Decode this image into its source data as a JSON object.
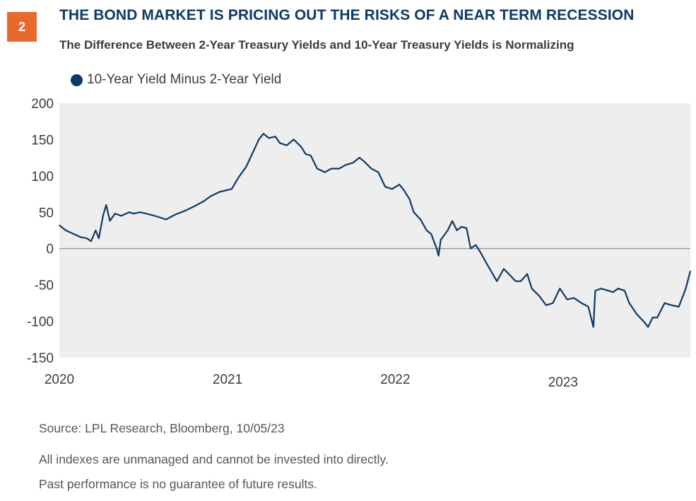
{
  "header": {
    "badge": "2",
    "title": "THE BOND MARKET IS PRICING OUT THE RISKS OF A NEAR TERM RECESSION",
    "subtitle": "The Difference Between 2-Year Treasury Yields and 10-Year Treasury Yields is Normalizing"
  },
  "colors": {
    "accent": "#e8692c",
    "title": "#0d3a66",
    "series": "#0d3a66",
    "plot_background": "#eeeeee"
  },
  "footer": {
    "source": "Source: LPL Research, Bloomberg,  10/05/23",
    "disclaimer1": "All indexes are unmanaged and cannot be invested into directly.",
    "disclaimer2": "Past performance is no guarantee of future results."
  },
  "chart_data": {
    "type": "line",
    "title": "",
    "xlabel": "",
    "ylabel": "",
    "ylim": [
      -150,
      200
    ],
    "yticks": [
      "200",
      "150",
      "100",
      "50",
      "0",
      "-50",
      "-100",
      "-150"
    ],
    "xticks": [
      "2020",
      "2021",
      "2022",
      "2023"
    ],
    "zero_line": true,
    "grid": false,
    "legend_position": "top-left",
    "series": [
      {
        "name": "10-Year Yield Minus 2-Year Yield",
        "color": "#0d3a66",
        "points": [
          [
            "2020-01-01",
            32
          ],
          [
            "2020-01-15",
            25
          ],
          [
            "2020-02-01",
            20
          ],
          [
            "2020-02-15",
            16
          ],
          [
            "2020-03-01",
            14
          ],
          [
            "2020-03-10",
            10
          ],
          [
            "2020-03-20",
            25
          ],
          [
            "2020-03-27",
            14
          ],
          [
            "2020-04-05",
            45
          ],
          [
            "2020-04-12",
            60
          ],
          [
            "2020-04-20",
            38
          ],
          [
            "2020-05-01",
            48
          ],
          [
            "2020-05-15",
            45
          ],
          [
            "2020-06-01",
            50
          ],
          [
            "2020-06-10",
            48
          ],
          [
            "2020-06-25",
            50
          ],
          [
            "2020-07-15",
            47
          ],
          [
            "2020-08-01",
            44
          ],
          [
            "2020-08-20",
            40
          ],
          [
            "2020-09-10",
            47
          ],
          [
            "2020-10-01",
            52
          ],
          [
            "2020-10-20",
            58
          ],
          [
            "2020-11-10",
            65
          ],
          [
            "2020-11-25",
            72
          ],
          [
            "2020-12-15",
            78
          ],
          [
            "2021-01-10",
            82
          ],
          [
            "2021-01-25",
            98
          ],
          [
            "2021-02-10",
            112
          ],
          [
            "2021-02-25",
            132
          ],
          [
            "2021-03-10",
            150
          ],
          [
            "2021-03-20",
            158
          ],
          [
            "2021-04-01",
            152
          ],
          [
            "2021-04-15",
            154
          ],
          [
            "2021-04-25",
            145
          ],
          [
            "2021-05-10",
            142
          ],
          [
            "2021-05-25",
            150
          ],
          [
            "2021-06-10",
            140
          ],
          [
            "2021-06-20",
            130
          ],
          [
            "2021-07-01",
            128
          ],
          [
            "2021-07-15",
            110
          ],
          [
            "2021-08-01",
            105
          ],
          [
            "2021-08-15",
            110
          ],
          [
            "2021-09-01",
            110
          ],
          [
            "2021-09-15",
            115
          ],
          [
            "2021-10-01",
            118
          ],
          [
            "2021-10-15",
            125
          ],
          [
            "2021-10-25",
            120
          ],
          [
            "2021-11-10",
            110
          ],
          [
            "2021-11-25",
            105
          ],
          [
            "2021-12-10",
            85
          ],
          [
            "2021-12-25",
            82
          ],
          [
            "2022-01-10",
            88
          ],
          [
            "2022-01-20",
            80
          ],
          [
            "2022-02-01",
            68
          ],
          [
            "2022-02-10",
            50
          ],
          [
            "2022-02-25",
            40
          ],
          [
            "2022-03-10",
            25
          ],
          [
            "2022-03-20",
            20
          ],
          [
            "2022-04-01",
            0
          ],
          [
            "2022-04-05",
            -10
          ],
          [
            "2022-04-10",
            12
          ],
          [
            "2022-04-25",
            25
          ],
          [
            "2022-05-05",
            38
          ],
          [
            "2022-05-15",
            25
          ],
          [
            "2022-05-25",
            30
          ],
          [
            "2022-06-05",
            28
          ],
          [
            "2022-06-14",
            0
          ],
          [
            "2022-06-25",
            5
          ],
          [
            "2022-07-05",
            -5
          ],
          [
            "2022-07-20",
            -22
          ],
          [
            "2022-08-01",
            -35
          ],
          [
            "2022-08-10",
            -45
          ],
          [
            "2022-08-25",
            -28
          ],
          [
            "2022-09-05",
            -35
          ],
          [
            "2022-09-20",
            -45
          ],
          [
            "2022-10-01",
            -45
          ],
          [
            "2022-10-15",
            -35
          ],
          [
            "2022-10-25",
            -55
          ],
          [
            "2022-11-10",
            -65
          ],
          [
            "2022-11-25",
            -78
          ],
          [
            "2022-12-10",
            -75
          ],
          [
            "2022-12-25",
            -55
          ],
          [
            "2023-01-10",
            -70
          ],
          [
            "2023-01-25",
            -68
          ],
          [
            "2023-02-10",
            -75
          ],
          [
            "2023-02-25",
            -80
          ],
          [
            "2023-03-08",
            -108
          ],
          [
            "2023-03-12",
            -58
          ],
          [
            "2023-03-25",
            -55
          ],
          [
            "2023-04-10",
            -58
          ],
          [
            "2023-04-20",
            -60
          ],
          [
            "2023-05-01",
            -55
          ],
          [
            "2023-05-15",
            -58
          ],
          [
            "2023-05-25",
            -75
          ],
          [
            "2023-06-10",
            -90
          ],
          [
            "2023-06-25",
            -100
          ],
          [
            "2023-07-05",
            -108
          ],
          [
            "2023-07-15",
            -95
          ],
          [
            "2023-07-25",
            -95
          ],
          [
            "2023-08-10",
            -75
          ],
          [
            "2023-08-25",
            -78
          ],
          [
            "2023-09-10",
            -80
          ],
          [
            "2023-09-25",
            -55
          ],
          [
            "2023-10-05",
            -31
          ]
        ]
      }
    ]
  }
}
